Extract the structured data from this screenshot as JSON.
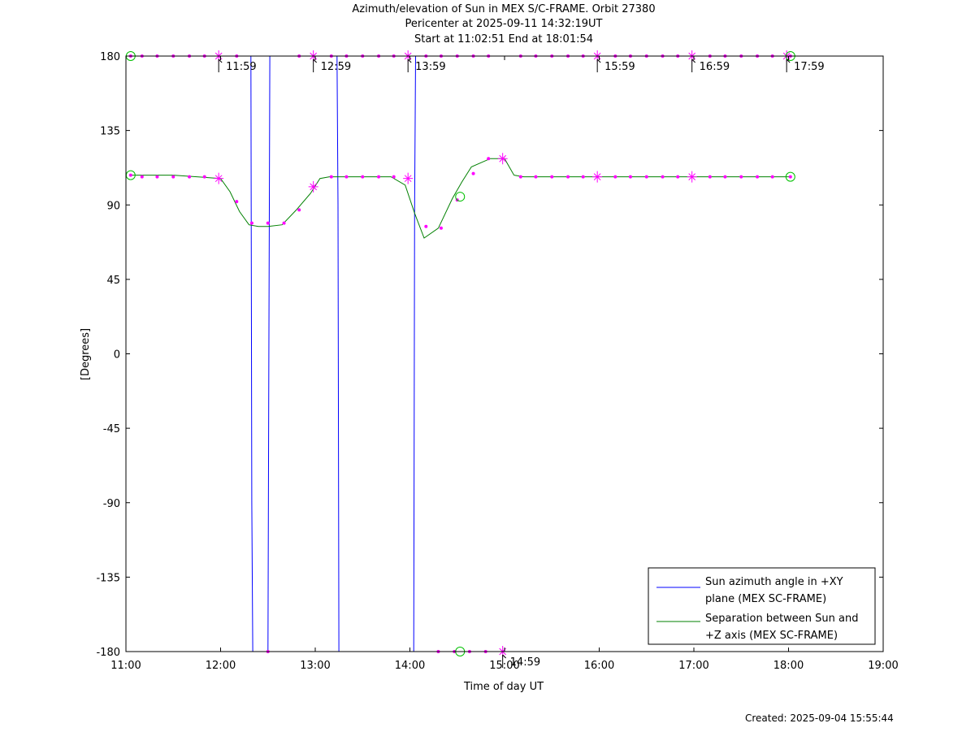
{
  "chart_data": {
    "type": "line",
    "title": "Azimuth/elevation of Sun in MEX S/C-FRAME.  Orbit 27380",
    "subtitle": "Pericenter at 2025-09-11 14:32:19UT",
    "subtitle2": "Start at 11:02:51 End at 18:01:54",
    "xlabel": "Time of day UT",
    "ylabel": "[Degrees]",
    "xlim": [
      0,
      8
    ],
    "ylim": [
      -180,
      180
    ],
    "xticks": [
      0,
      1,
      2,
      3,
      4,
      5,
      6,
      7,
      8
    ],
    "xtick_labels": [
      "11:00",
      "12:00",
      "13:00",
      "14:00",
      "15:00",
      "16:00",
      "17:00",
      "18:00",
      "19:00"
    ],
    "yticks": [
      180,
      135,
      90,
      45,
      0,
      -45,
      -90,
      -135,
      -180
    ],
    "ytick_labels": [
      "180",
      "135",
      "90",
      "45",
      "0",
      "-45",
      "-90",
      "-135",
      "-180"
    ],
    "grid": false,
    "legend_position": "bottom-right",
    "series": [
      {
        "name": "Sun azimuth angle in +XY plane (MEX SC-FRAME)",
        "color": "#0000ff",
        "x": [
          0.05,
          1.32,
          1.33,
          1.34,
          1.35,
          1.5,
          1.51,
          1.52,
          1.53,
          2.23,
          2.24,
          2.25,
          2.26,
          3.04,
          3.05,
          3.06,
          3.07,
          7.02
        ],
        "y": [
          180,
          180,
          -90,
          -180,
          -180,
          -180,
          0,
          180,
          180,
          180,
          90,
          -180,
          -180,
          -180,
          90,
          180,
          180,
          180
        ]
      },
      {
        "name": "Separation between Sun and +Z axis (MEX SC-FRAME)",
        "color": "#008000",
        "x": [
          0.05,
          0.5,
          1.0,
          1.1,
          1.2,
          1.3,
          1.4,
          1.5,
          1.65,
          1.8,
          1.95,
          2.05,
          2.15,
          2.3,
          2.5,
          2.65,
          2.8,
          2.95,
          3.05,
          3.15,
          3.3,
          3.45,
          3.55,
          3.65,
          3.85,
          4.0,
          4.1,
          4.2,
          4.3,
          7.02
        ],
        "y": [
          108,
          108,
          106,
          98,
          86,
          78,
          77,
          77,
          78,
          87,
          97,
          106,
          107,
          107,
          107,
          107,
          107,
          102,
          85,
          70,
          76,
          94,
          104,
          113,
          118,
          118,
          108,
          107,
          107,
          107
        ]
      }
    ],
    "markers": {
      "color": "#ff00ff",
      "azimuth_dots": [
        [
          0.05,
          180
        ],
        [
          0.17,
          180
        ],
        [
          0.33,
          180
        ],
        [
          0.5,
          180
        ],
        [
          0.67,
          180
        ],
        [
          0.83,
          180
        ],
        [
          1.17,
          180
        ],
        [
          1.83,
          180
        ],
        [
          2.17,
          180
        ],
        [
          2.33,
          180
        ],
        [
          2.5,
          180
        ],
        [
          2.67,
          180
        ],
        [
          2.83,
          180
        ],
        [
          3.17,
          180
        ],
        [
          3.33,
          180
        ],
        [
          3.5,
          180
        ],
        [
          3.67,
          180
        ],
        [
          3.83,
          180
        ],
        [
          4.17,
          180
        ],
        [
          4.33,
          180
        ],
        [
          4.5,
          180
        ],
        [
          4.67,
          180
        ],
        [
          4.83,
          180
        ],
        [
          5.17,
          180
        ],
        [
          5.33,
          180
        ],
        [
          5.5,
          180
        ],
        [
          5.67,
          180
        ],
        [
          5.83,
          180
        ],
        [
          6.17,
          180
        ],
        [
          6.33,
          180
        ],
        [
          6.5,
          180
        ],
        [
          6.67,
          180
        ],
        [
          6.83,
          180
        ],
        [
          7.02,
          180
        ],
        [
          1.5,
          -180
        ],
        [
          3.3,
          -180
        ],
        [
          3.47,
          -180
        ],
        [
          3.63,
          -180
        ],
        [
          3.8,
          -180
        ]
      ],
      "separation_dots": [
        [
          0.05,
          108
        ],
        [
          0.17,
          107
        ],
        [
          0.33,
          107
        ],
        [
          0.5,
          107
        ],
        [
          0.67,
          107
        ],
        [
          0.83,
          107
        ],
        [
          1.17,
          92
        ],
        [
          1.33,
          79
        ],
        [
          1.5,
          79
        ],
        [
          1.67,
          79
        ],
        [
          1.83,
          87
        ],
        [
          2.17,
          107
        ],
        [
          2.33,
          107
        ],
        [
          2.5,
          107
        ],
        [
          2.67,
          107
        ],
        [
          2.83,
          107
        ],
        [
          3.17,
          77
        ],
        [
          3.33,
          76
        ],
        [
          3.5,
          93
        ],
        [
          3.67,
          109
        ],
        [
          3.83,
          118
        ],
        [
          4.17,
          107
        ],
        [
          4.33,
          107
        ],
        [
          4.5,
          107
        ],
        [
          4.67,
          107
        ],
        [
          4.83,
          107
        ],
        [
          5.17,
          107
        ],
        [
          5.33,
          107
        ],
        [
          5.5,
          107
        ],
        [
          5.67,
          107
        ],
        [
          5.83,
          107
        ],
        [
          6.17,
          107
        ],
        [
          6.33,
          107
        ],
        [
          6.5,
          107
        ],
        [
          6.67,
          107
        ],
        [
          6.83,
          107
        ],
        [
          7.02,
          107
        ]
      ],
      "hour_crosses": [
        [
          0.98,
          180
        ],
        [
          1.98,
          180
        ],
        [
          2.98,
          180
        ],
        [
          4.98,
          180
        ],
        [
          5.98,
          180
        ],
        [
          6.98,
          180
        ],
        [
          3.98,
          -180
        ],
        [
          0.98,
          106
        ],
        [
          1.98,
          101
        ],
        [
          2.98,
          106
        ],
        [
          3.98,
          118
        ],
        [
          4.98,
          107
        ],
        [
          5.98,
          107
        ]
      ],
      "circles": [
        [
          0.05,
          180
        ],
        [
          7.02,
          180
        ],
        [
          0.05,
          108
        ],
        [
          7.02,
          107
        ],
        [
          3.53,
          95
        ],
        [
          3.53,
          -180
        ]
      ]
    },
    "annotations": [
      {
        "x": 0.98,
        "y": 180,
        "label": "11:59"
      },
      {
        "x": 1.98,
        "y": 180,
        "label": "12:59"
      },
      {
        "x": 2.98,
        "y": 180,
        "label": "13:59"
      },
      {
        "x": 3.98,
        "y": -180,
        "label": "14:59"
      },
      {
        "x": 4.98,
        "y": 180,
        "label": "15:59"
      },
      {
        "x": 5.98,
        "y": 180,
        "label": "16:59"
      },
      {
        "x": 6.98,
        "y": 180,
        "label": "17:59"
      }
    ]
  },
  "legend": {
    "azimuth_line1": "Sun azimuth angle in +XY",
    "azimuth_line2": "plane (MEX SC-FRAME)",
    "separation_line1": "Separation between Sun and",
    "separation_line2": "+Z axis (MEX SC-FRAME)"
  },
  "footer": {
    "created": "Created: 2025-09-04 15:55:44"
  }
}
